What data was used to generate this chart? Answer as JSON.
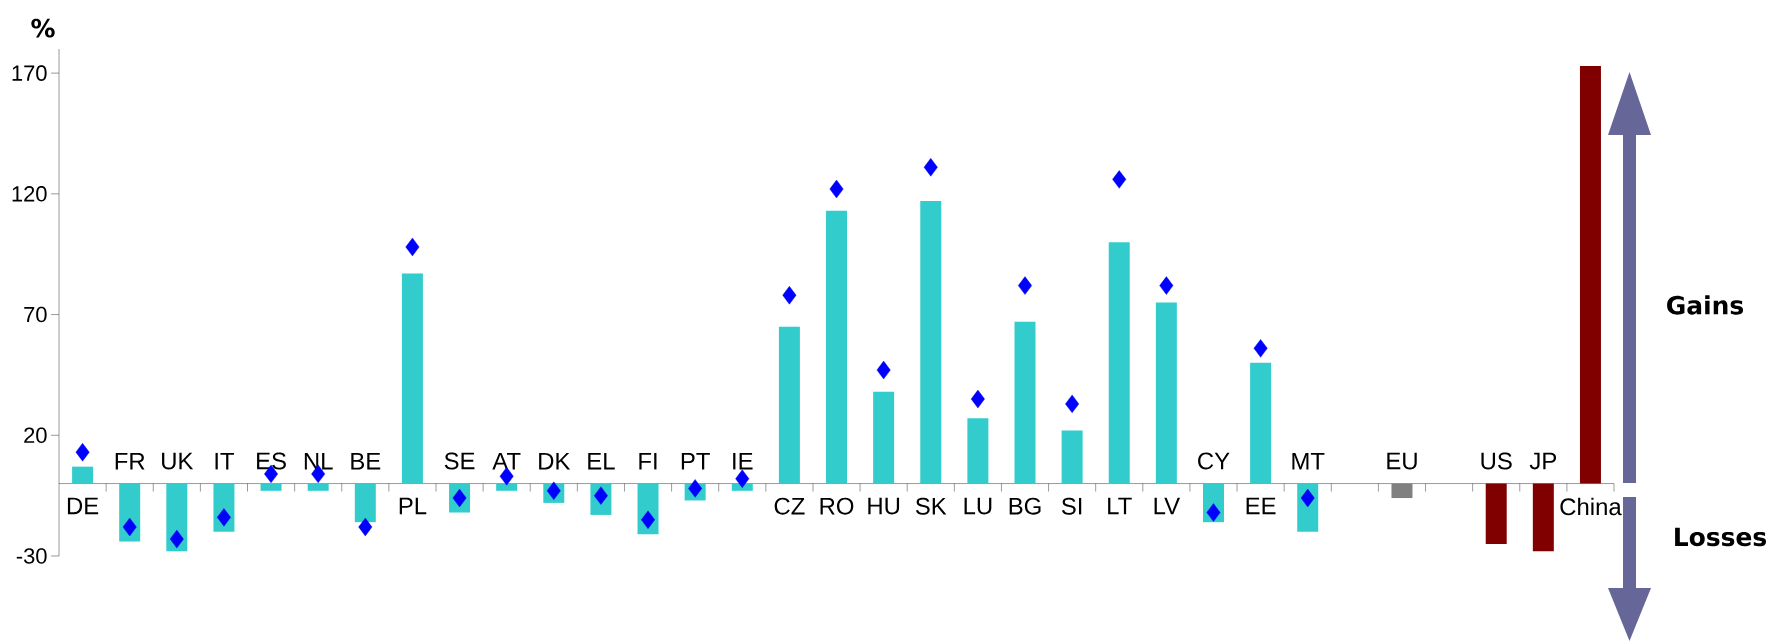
{
  "chart_data": {
    "type": "bar",
    "ylabel": "%",
    "categories": [
      "DE",
      "FR",
      "UK",
      "IT",
      "ES",
      "NL",
      "BE",
      "PL",
      "SE",
      "AT",
      "DK",
      "EL",
      "FI",
      "PT",
      "IE",
      "CZ",
      "RO",
      "HU",
      "SK",
      "LU",
      "BG",
      "SI",
      "LT",
      "LV",
      "CY",
      "EE",
      "MT",
      null,
      "EU",
      null,
      "US",
      "JP",
      "China"
    ],
    "series": [
      {
        "type": "bar",
        "colors": [
          "#33cccc",
          "#33cccc",
          "#33cccc",
          "#33cccc",
          "#33cccc",
          "#33cccc",
          "#33cccc",
          "#33cccc",
          "#33cccc",
          "#33cccc",
          "#33cccc",
          "#33cccc",
          "#33cccc",
          "#33cccc",
          "#33cccc",
          "#33cccc",
          "#33cccc",
          "#33cccc",
          "#33cccc",
          "#33cccc",
          "#33cccc",
          "#33cccc",
          "#33cccc",
          "#33cccc",
          "#33cccc",
          "#33cccc",
          "#33cccc",
          null,
          "#808080",
          null,
          "#800000",
          "#800000",
          "#800000"
        ],
        "values": [
          7,
          -24,
          -28,
          -20,
          -3,
          -3,
          -16,
          87,
          -12,
          -3,
          -8,
          -13,
          -21,
          -7,
          -3,
          65,
          113,
          38,
          117,
          27,
          67,
          22,
          100,
          75,
          -16,
          50,
          -20,
          null,
          -6,
          null,
          -25,
          -28,
          173
        ]
      },
      {
        "type": "scatter",
        "color": "#0000ff",
        "values": [
          13,
          -18,
          -23,
          -14,
          4,
          4,
          -18,
          98,
          -6,
          3,
          -3,
          -5,
          -15,
          -2,
          2,
          78,
          122,
          47,
          131,
          35,
          82,
          33,
          126,
          82,
          -12,
          56,
          -6,
          null,
          null,
          null,
          null,
          null,
          null
        ]
      }
    ],
    "ylim": [
      -30,
      180
    ],
    "yticks": [
      -30,
      20,
      70,
      120,
      170
    ],
    "marker": "diamond",
    "grid": false,
    "annotations": [
      "Gains",
      "Losses"
    ]
  }
}
